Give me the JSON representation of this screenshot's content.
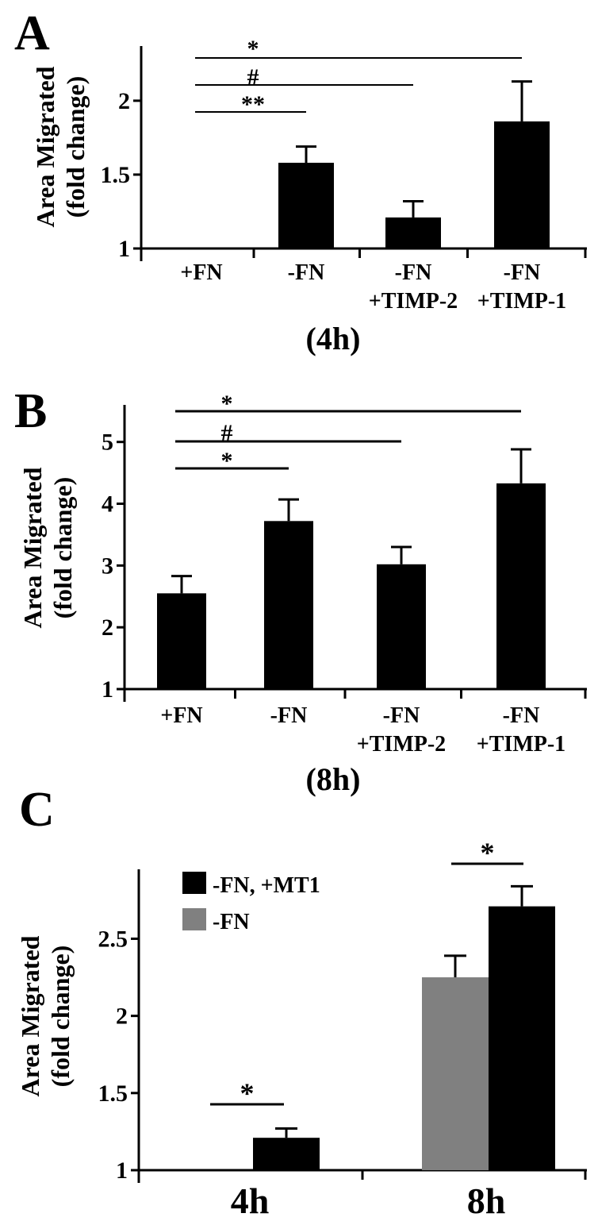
{
  "colors": {
    "axis": "#000000",
    "black_bar": "#000000",
    "gray_bar": "#808080"
  },
  "chart_data": [
    {
      "panel": "A",
      "type": "bar",
      "ylabel": [
        "Area Migrated",
        "(fold change)"
      ],
      "xlabel": "(4h)",
      "categories": [
        [
          "+FN"
        ],
        [
          "-FN"
        ],
        [
          "-FN",
          "+TIMP-2"
        ],
        [
          "-FN",
          "+TIMP-1"
        ]
      ],
      "values": [
        1.0,
        1.58,
        1.21,
        1.86
      ],
      "errors": [
        0,
        0.11,
        0.11,
        0.27
      ],
      "yticks": [
        "1",
        "1.5",
        "2"
      ],
      "ylim": [
        1,
        2.37
      ],
      "significance": [
        {
          "from": 0,
          "to": 3,
          "label": "*"
        },
        {
          "from": 0,
          "to": 2,
          "label": "#"
        },
        {
          "from": 0,
          "to": 1,
          "label": "**"
        }
      ]
    },
    {
      "panel": "B",
      "type": "bar",
      "ylabel": [
        "Area Migrated",
        "(fold change)"
      ],
      "xlabel": "(8h)",
      "categories": [
        [
          "+FN"
        ],
        [
          "-FN"
        ],
        [
          "-FN",
          "+TIMP-2"
        ],
        [
          "-FN",
          "+TIMP-1"
        ]
      ],
      "values": [
        2.55,
        3.72,
        3.02,
        4.33
      ],
      "errors": [
        0.28,
        0.35,
        0.28,
        0.55
      ],
      "yticks": [
        "1",
        "2",
        "3",
        "4",
        "5"
      ],
      "ylim": [
        1,
        5.6
      ],
      "significance": [
        {
          "from": 0,
          "to": 3,
          "label": "*"
        },
        {
          "from": 0,
          "to": 2,
          "label": "#"
        },
        {
          "from": 0,
          "to": 1,
          "label": "*"
        }
      ]
    },
    {
      "panel": "C",
      "type": "bar",
      "ylabel": [
        "Area Migrated",
        "(fold change)"
      ],
      "categories": [
        "4h",
        "8h"
      ],
      "series": [
        {
          "name": "-FN",
          "color": "#808080",
          "values": [
            1.0,
            2.25
          ],
          "errors": [
            0,
            0.14
          ]
        },
        {
          "name": "-FN, +MT1",
          "color": "#000000",
          "values": [
            1.21,
            2.71
          ],
          "errors": [
            0.06,
            0.13
          ]
        }
      ],
      "legend_order": [
        1,
        0
      ],
      "yticks": [
        "1",
        "1.5",
        "2",
        "2.5"
      ],
      "ylim": [
        1,
        2.95
      ],
      "significance": [
        {
          "category": 0,
          "label": "*"
        },
        {
          "category": 1,
          "label": "*"
        }
      ]
    }
  ]
}
